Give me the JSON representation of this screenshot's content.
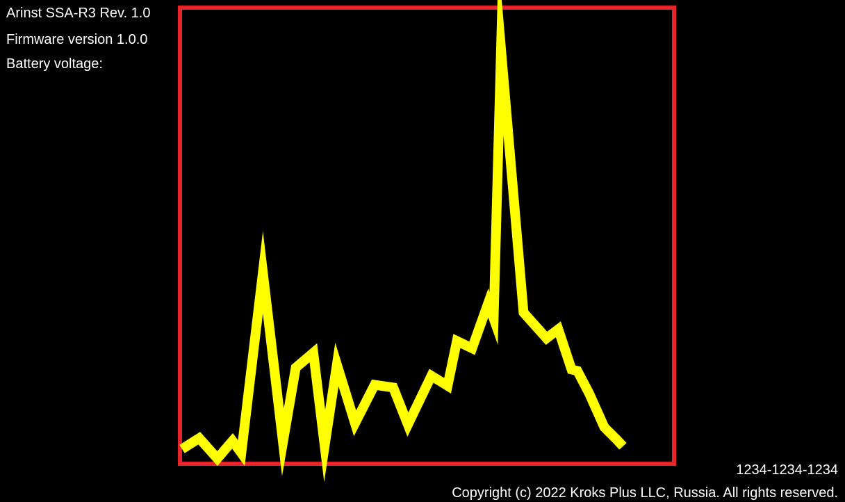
{
  "device": {
    "model_line": "Arinst SSA-R3 Rev. 1.0",
    "firmware_line": "Firmware version 1.0.0",
    "battery_line": "Battery voltage:"
  },
  "footer": {
    "serial": "1234-1234-1234",
    "copyright": "Copyright (c) 2022 Kroks Plus LLC, Russia. All rights reserved."
  },
  "colors": {
    "background": "#000000",
    "frame": "#e8242b",
    "trace": "#ffff00",
    "text": "#ffffff"
  },
  "chart_data": {
    "type": "line",
    "title": "",
    "xlabel": "",
    "ylabel": "",
    "xlim": [
      0,
      100
    ],
    "ylim": [
      0,
      100
    ],
    "grid": false,
    "legend": "none",
    "series": [
      {
        "x": [
          0,
          3.5,
          7.2,
          10.3,
          12.1,
          16.5,
          20.6,
          23.2,
          26.8,
          29.1,
          31.6,
          35.3,
          39.3,
          43.1,
          46.1,
          50.9,
          54.2,
          56.1,
          59.2,
          62.5,
          63.6,
          65.1,
          69.7,
          74.4,
          76.8,
          79.5,
          80.7,
          83.1,
          86.2,
          88.8,
          90.0
        ],
        "y": [
          2.8,
          5.2,
          0.7,
          4.6,
          1.9,
          41.9,
          4.3,
          20.8,
          24.1,
          3.5,
          21.5,
          8.5,
          17.0,
          16.4,
          8.2,
          19.0,
          16.8,
          26.7,
          25.1,
          35.1,
          31.7,
          91.3,
          33.0,
          27.3,
          29.3,
          20.4,
          20.1,
          15.1,
          7.6,
          4.8,
          3.4
        ]
      }
    ]
  }
}
